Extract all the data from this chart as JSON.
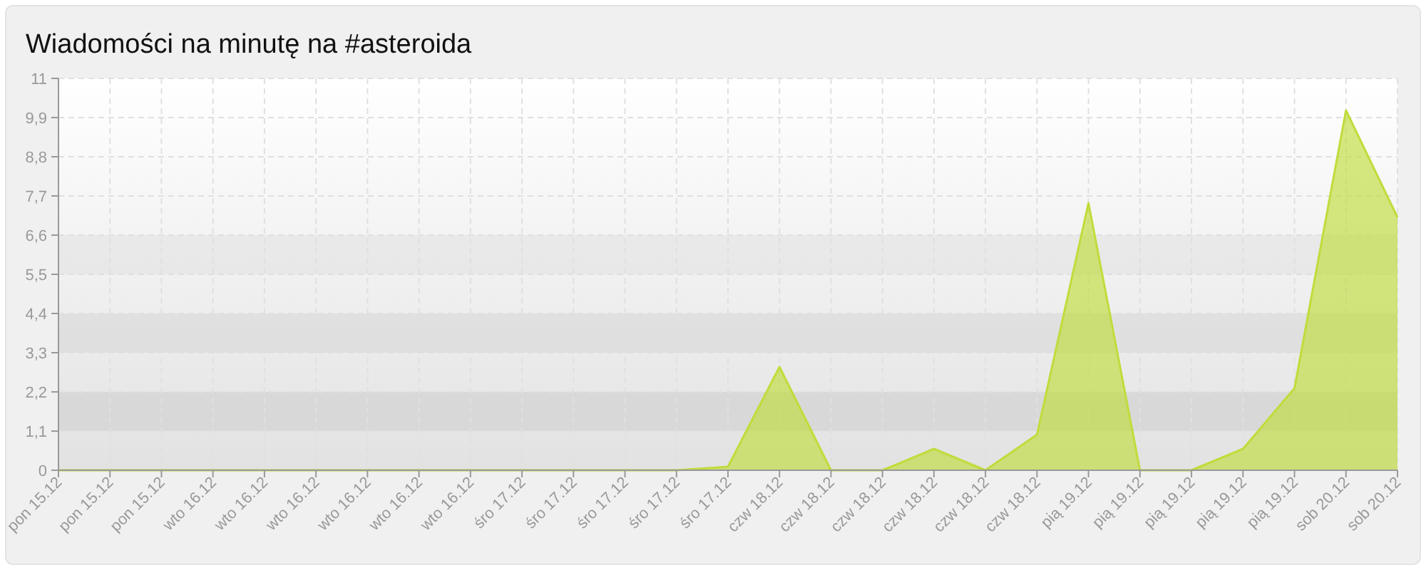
{
  "chart_data": {
    "type": "area",
    "title": "Wiadomości na minutę na #asteroida",
    "categories": [
      "pon 15.12",
      "pon 15.12",
      "pon 15.12",
      "wto 16.12",
      "wto 16.12",
      "wto 16.12",
      "wto 16.12",
      "wto 16.12",
      "wto 16.12",
      "śro 17.12",
      "śro 17.12",
      "śro 17.12",
      "śro 17.12",
      "śro 17.12",
      "czw 18.12",
      "czw 18.12",
      "czw 18.12",
      "czw 18.12",
      "czw 18.12",
      "czw 18.12",
      "pią 19.12",
      "pią 19.12",
      "pią 19.12",
      "pią 19.12",
      "pią 19.12",
      "sob 20.12",
      "sob 20.12"
    ],
    "values": [
      0,
      0,
      0,
      0,
      0,
      0,
      0,
      0,
      0,
      0,
      0,
      0,
      0,
      0.1,
      2.9,
      0,
      0,
      0.6,
      0,
      1.0,
      7.5,
      0,
      0,
      0.6,
      2.3,
      10.1,
      7.1
    ],
    "color": "#c0dc3c",
    "ylim": [
      0,
      11
    ],
    "yticks": [
      0,
      {
        "value": 1.1,
        "label": "1,1"
      },
      {
        "value": 2.2,
        "label": "2,2"
      },
      {
        "value": 3.3,
        "label": "3,3"
      },
      {
        "value": 4.4,
        "label": "4,4"
      },
      {
        "value": 5.5,
        "label": "5,5"
      },
      {
        "value": 6.6,
        "label": "6,6"
      },
      {
        "value": 7.7,
        "label": "7,7"
      },
      {
        "value": 8.8,
        "label": "8,8"
      },
      {
        "value": 9.9,
        "label": "9,9"
      },
      11
    ],
    "bands": [
      {
        "axis": "y",
        "from": 1.1,
        "to": 2.2,
        "color": "#d4d4d4"
      },
      {
        "axis": "y",
        "from": 3.3,
        "to": 4.4,
        "color": "#dcdcdc"
      },
      {
        "axis": "y",
        "from": 5.5,
        "to": 6.6,
        "color": "#e6e6e6"
      }
    ],
    "grid": true
  }
}
